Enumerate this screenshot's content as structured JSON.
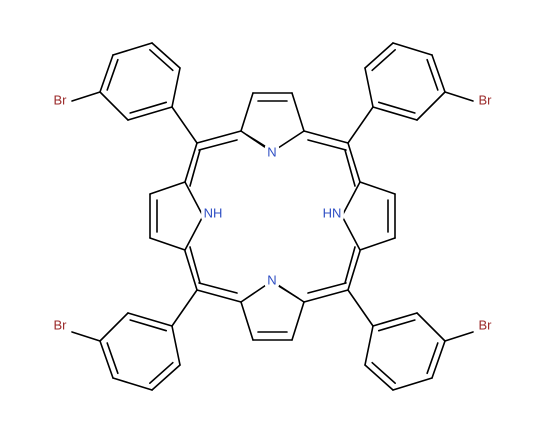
{
  "atoms": [
    "N",
    "N",
    "NH",
    "HN",
    "Br",
    "Br",
    "Br",
    "Br"
  ]
}
